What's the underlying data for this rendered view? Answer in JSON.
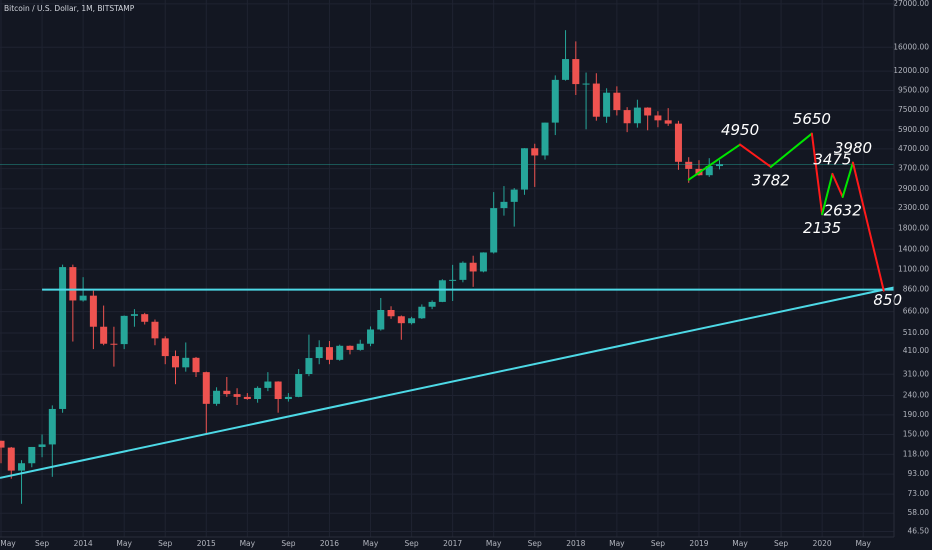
{
  "chart_data": {
    "type": "candlestick",
    "title": "Bitcoin / U.S. Dollar, 1M, BITSTAMP",
    "log_scale": true,
    "grid": true,
    "up_color": "#26a69a",
    "down_color": "#ef5350",
    "x": [
      "2013-05",
      "2013-06",
      "2013-07",
      "2013-08",
      "2013-09",
      "2013-10",
      "2013-11",
      "2013-12",
      "2014-01",
      "2014-02",
      "2014-03",
      "2014-04",
      "2014-05",
      "2014-06",
      "2014-07",
      "2014-08",
      "2014-09",
      "2014-10",
      "2014-11",
      "2014-12",
      "2015-01",
      "2015-02",
      "2015-03",
      "2015-04",
      "2015-05",
      "2015-06",
      "2015-07",
      "2015-08",
      "2015-09",
      "2015-10",
      "2015-11",
      "2015-12",
      "2016-01",
      "2016-02",
      "2016-03",
      "2016-04",
      "2016-05",
      "2016-06",
      "2016-07",
      "2016-08",
      "2016-09",
      "2016-10",
      "2016-11",
      "2016-12",
      "2017-01",
      "2017-02",
      "2017-03",
      "2017-04",
      "2017-05",
      "2017-06",
      "2017-07",
      "2017-08",
      "2017-09",
      "2017-10",
      "2017-11",
      "2017-12",
      "2018-01",
      "2018-02",
      "2018-03",
      "2018-04",
      "2018-05",
      "2018-06",
      "2018-07",
      "2018-08",
      "2018-09",
      "2018-10",
      "2018-11",
      "2018-12",
      "2019-01",
      "2019-02",
      "2019-03"
    ],
    "open": [
      139,
      128,
      97,
      106,
      129,
      133,
      204,
      1129,
      755,
      800,
      550,
      448,
      446,
      627,
      640,
      584,
      478,
      386,
      337,
      378,
      318,
      217,
      254,
      244,
      236,
      230,
      263,
      284,
      230,
      236,
      311,
      377,
      430,
      369,
      437,
      416,
      448,
      532,
      673,
      624,
      574,
      609,
      700,
      742,
      963,
      968,
      1190,
      1071,
      1347,
      2300,
      2480,
      2875,
      4735,
      4340,
      6450,
      10800,
      13880,
      10265,
      10330,
      6925,
      9250,
      7500,
      6400,
      7730,
      7030,
      6630,
      6370,
      4020,
      3690,
      3420,
      3820
    ],
    "high": [
      139,
      129,
      110,
      129,
      150,
      213,
      1163,
      1163,
      1000,
      850,
      710,
      550,
      630,
      680,
      650,
      600,
      490,
      413,
      455,
      382,
      320,
      265,
      300,
      262,
      247,
      268,
      318,
      285,
      247,
      330,
      500,
      467,
      463,
      443,
      439,
      470,
      552,
      778,
      704,
      630,
      620,
      720,
      756,
      975,
      1160,
      1210,
      1295,
      1350,
      2790,
      3000,
      2930,
      4740,
      5000,
      6450,
      11400,
      19666,
      17180,
      11800,
      11700,
      9760,
      9990,
      7770,
      8500,
      7760,
      7400,
      7680,
      6590,
      4250,
      4100,
      4200,
      4100
    ],
    "low": [
      106,
      88,
      65,
      101,
      114,
      90,
      195,
      460,
      745,
      420,
      440,
      340,
      420,
      550,
      565,
      440,
      350,
      275,
      320,
      300,
      152,
      212,
      236,
      214,
      228,
      220,
      253,
      195,
      223,
      235,
      303,
      350,
      350,
      365,
      394,
      412,
      435,
      525,
      605,
      470,
      565,
      604,
      680,
      740,
      750,
      940,
      890,
      1060,
      1330,
      2100,
      1840,
      2700,
      2970,
      4130,
      5550,
      10700,
      9000,
      5950,
      6600,
      6430,
      7030,
      5750,
      6070,
      5880,
      6100,
      6200,
      3650,
      3120,
      3400,
      3350,
      3670
    ],
    "close": [
      128,
      97,
      106,
      129,
      133,
      204,
      1129,
      755,
      800,
      550,
      448,
      446,
      627,
      640,
      584,
      478,
      386,
      337,
      378,
      318,
      217,
      254,
      244,
      236,
      230,
      263,
      284,
      230,
      236,
      311,
      377,
      430,
      369,
      437,
      416,
      448,
      532,
      673,
      624,
      574,
      609,
      700,
      742,
      963,
      968,
      1190,
      1071,
      1347,
      2300,
      2480,
      2875,
      4735,
      4340,
      6450,
      10800,
      13880,
      10265,
      10330,
      6925,
      9250,
      7500,
      6400,
      7730,
      7030,
      6630,
      6370,
      4020,
      3690,
      3420,
      3820,
      3900
    ],
    "xlim": [
      "2013-05",
      "2020-08"
    ],
    "xticks": [
      {
        "value": "2013-05",
        "label": "May"
      },
      {
        "value": "2013-09",
        "label": "Sep"
      },
      {
        "value": "2014-01",
        "label": "2014"
      },
      {
        "value": "2014-05",
        "label": "May"
      },
      {
        "value": "2014-09",
        "label": "Sep"
      },
      {
        "value": "2015-01",
        "label": "2015"
      },
      {
        "value": "2015-05",
        "label": "May"
      },
      {
        "value": "2015-09",
        "label": "Sep"
      },
      {
        "value": "2016-01",
        "label": "2016"
      },
      {
        "value": "2016-05",
        "label": "May"
      },
      {
        "value": "2016-09",
        "label": "Sep"
      },
      {
        "value": "2017-01",
        "label": "2017"
      },
      {
        "value": "2017-05",
        "label": "May"
      },
      {
        "value": "2017-09",
        "label": "Sep"
      },
      {
        "value": "2018-01",
        "label": "2018"
      },
      {
        "value": "2018-05",
        "label": "May"
      },
      {
        "value": "2018-09",
        "label": "Sep"
      },
      {
        "value": "2019-01",
        "label": "2019"
      },
      {
        "value": "2019-05",
        "label": "May"
      },
      {
        "value": "2019-09",
        "label": "Sep"
      },
      {
        "value": "2020-01",
        "label": "2020"
      },
      {
        "value": "2020-05",
        "label": "May"
      }
    ],
    "ylim": [
      42,
      28300
    ],
    "yticks": [
      {
        "value": 27000,
        "label": "27000.00"
      },
      {
        "value": 16000,
        "label": "16000.00"
      },
      {
        "value": 12000,
        "label": "12000.00"
      },
      {
        "value": 9500,
        "label": "9500.00"
      },
      {
        "value": 7500,
        "label": "7500.00"
      },
      {
        "value": 5900,
        "label": "5900.00"
      },
      {
        "value": 4700,
        "label": "4700.00"
      },
      {
        "value": 3700,
        "label": "3700.00"
      },
      {
        "value": 2900,
        "label": "2900.00"
      },
      {
        "value": 2300,
        "label": "2300.00"
      },
      {
        "value": 1800,
        "label": "1800.00"
      },
      {
        "value": 1400,
        "label": "1400.00"
      },
      {
        "value": 1100,
        "label": "1100.00"
      },
      {
        "value": 860,
        "label": "860.00"
      },
      {
        "value": 660,
        "label": "660.00"
      },
      {
        "value": 510,
        "label": "510.00"
      },
      {
        "value": 410,
        "label": "410.00"
      },
      {
        "value": 310,
        "label": "310.00"
      },
      {
        "value": 240,
        "label": "240.00"
      },
      {
        "value": 190,
        "label": "190.00"
      },
      {
        "value": 150,
        "label": "150.00"
      },
      {
        "value": 118,
        "label": "118.00"
      },
      {
        "value": 93,
        "label": "93.00"
      },
      {
        "value": 73,
        "label": "73.00"
      },
      {
        "value": 58,
        "label": "58.00"
      },
      {
        "value": 46.5,
        "label": "46.50"
      }
    ],
    "projection": {
      "x": [
        "2018-12",
        "2019-05",
        "2019-08",
        "2019-12",
        "2020-01",
        "2020-02",
        "2020-03",
        "2020-04",
        "2020-07"
      ],
      "values": [
        3240,
        4950,
        3782,
        5650,
        2135,
        3475,
        2632,
        3980,
        850
      ],
      "value_labels": [
        null,
        "4950",
        "3782",
        "5650",
        "2135",
        "3475",
        "2632",
        "3980",
        "850"
      ],
      "segment_colors": [
        "#00e600",
        "#ff1a1a",
        "#00e600",
        "#ff1a1a",
        "#00e600",
        "#ff1a1a",
        "#00e600",
        "#ff1a1a"
      ]
    },
    "horizontal_line": {
      "x": "2013-09",
      "value": 860,
      "color": "#4dd9e6"
    },
    "trendline": {
      "x": [
        "2013-05",
        "2020-07"
      ],
      "values": [
        89,
        860
      ],
      "color": "#4dd9e6"
    }
  }
}
